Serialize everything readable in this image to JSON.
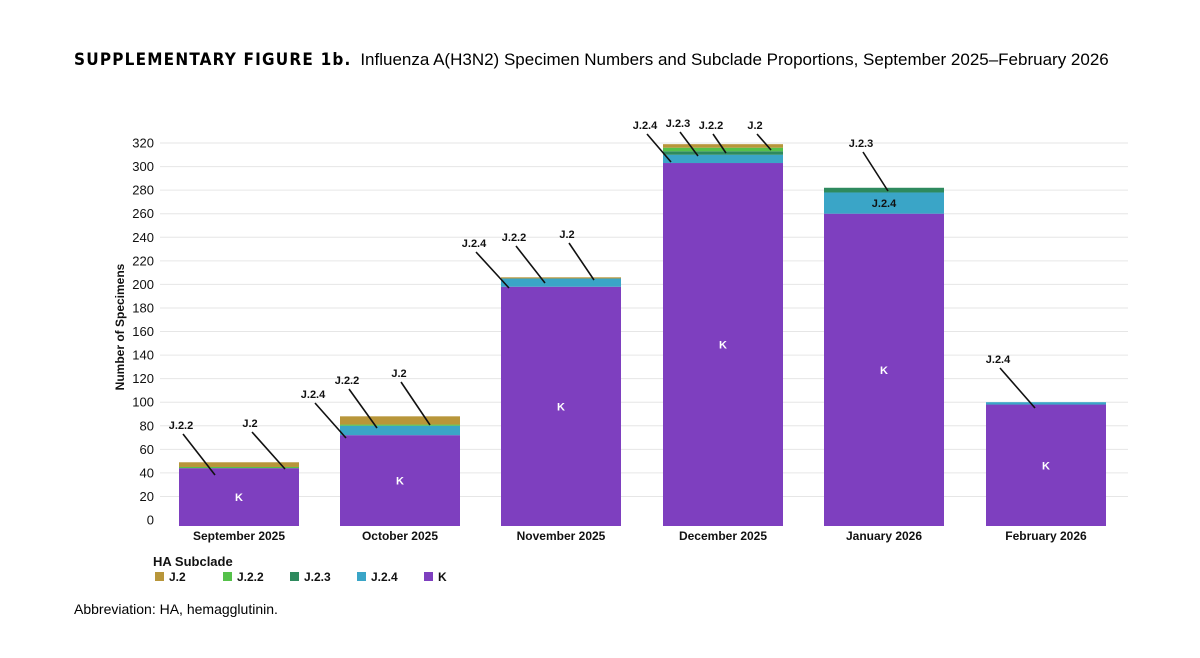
{
  "figure": {
    "label": "SUPPLEMENTARY FIGURE 1b.",
    "title": "Influenza A(H3N2) Specimen Numbers and Subclade Proportions, September 2025–February 2026",
    "footnote": "Abbreviation: HA, hemagglutinin."
  },
  "chart_data": {
    "type": "bar",
    "stacked": true,
    "title": "",
    "xlabel": "",
    "ylabel": "Number of Specimens",
    "ylim": [
      0,
      320
    ],
    "yticks": [
      0,
      20,
      40,
      60,
      80,
      100,
      120,
      140,
      160,
      180,
      200,
      220,
      240,
      260,
      280,
      300,
      320
    ],
    "grid": true,
    "categories": [
      "September 2025",
      "October 2025",
      "November 2025",
      "December 2025",
      "January 2026",
      "February 2026"
    ],
    "legend": {
      "title": "HA Subclade",
      "placement": "bottom-left"
    },
    "series": [
      {
        "name": "K",
        "color": "#7E3FBF",
        "values": [
          44,
          72,
          198,
          303,
          260,
          98
        ]
      },
      {
        "name": "J.2.4",
        "color": "#3AA5C7",
        "values": [
          0,
          8,
          7,
          7,
          18,
          2
        ]
      },
      {
        "name": "J.2.3",
        "color": "#2E8A5E",
        "values": [
          0,
          0,
          0,
          3,
          4,
          0
        ]
      },
      {
        "name": "J.2.2",
        "color": "#55C14A",
        "values": [
          1,
          1,
          0,
          3,
          0,
          0
        ]
      },
      {
        "name": "J.2",
        "color": "#B8963A",
        "values": [
          4,
          7,
          1,
          3,
          0,
          0
        ]
      }
    ],
    "legend_order": [
      "J.2",
      "J.2.2",
      "J.2.3",
      "J.2.4",
      "K"
    ],
    "inner_labels": [
      {
        "category": 0,
        "series": "K",
        "text": "K"
      },
      {
        "category": 1,
        "series": "K",
        "text": "K"
      },
      {
        "category": 2,
        "series": "K",
        "text": "K"
      },
      {
        "category": 3,
        "series": "K",
        "text": "K"
      },
      {
        "category": 4,
        "series": "K",
        "text": "K"
      },
      {
        "category": 4,
        "series": "J.2.4",
        "text": "J.2.4"
      },
      {
        "category": 5,
        "series": "K",
        "text": "K"
      }
    ],
    "annotations": [
      {
        "category": 0,
        "series": "J.2.2",
        "text": "J.2.2"
      },
      {
        "category": 0,
        "series": "J.2",
        "text": "J.2"
      },
      {
        "category": 1,
        "series": "J.2.4",
        "text": "J.2.4"
      },
      {
        "category": 1,
        "series": "J.2.2",
        "text": "J.2.2"
      },
      {
        "category": 1,
        "series": "J.2",
        "text": "J.2"
      },
      {
        "category": 2,
        "series": "J.2.4",
        "text": "J.2.4"
      },
      {
        "category": 2,
        "series": "J.2.2",
        "text": "J.2.2"
      },
      {
        "category": 2,
        "series": "J.2",
        "text": "J.2"
      },
      {
        "category": 3,
        "series": "J.2.4",
        "text": "J.2.4"
      },
      {
        "category": 3,
        "series": "J.2.3",
        "text": "J.2.3"
      },
      {
        "category": 3,
        "series": "J.2.2",
        "text": "J.2.2"
      },
      {
        "category": 3,
        "series": "J.2",
        "text": "J.2"
      },
      {
        "category": 4,
        "series": "J.2.3",
        "text": "J.2.3"
      },
      {
        "category": 5,
        "series": "J.2.4",
        "text": "J.2.4"
      }
    ]
  }
}
